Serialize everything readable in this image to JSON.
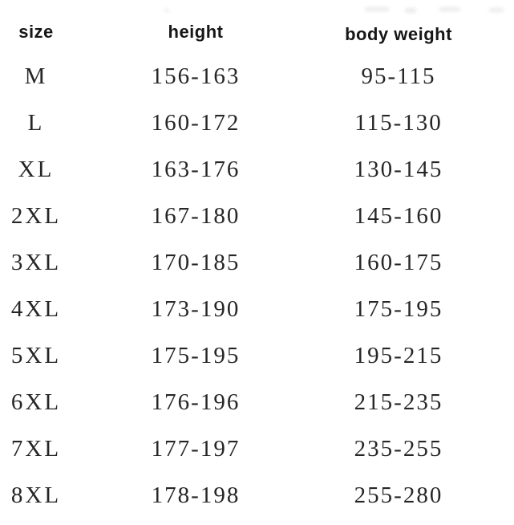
{
  "chart_data": {
    "type": "table",
    "columns": [
      "size",
      "height",
      "body weight"
    ],
    "rows": [
      [
        "M",
        "156-163",
        "95-115"
      ],
      [
        "L",
        "160-172",
        "115-130"
      ],
      [
        "XL",
        "163-176",
        "130-145"
      ],
      [
        "2XL",
        "167-180",
        "145-160"
      ],
      [
        "3XL",
        "170-185",
        "160-175"
      ],
      [
        "4XL",
        "173-190",
        "175-195"
      ],
      [
        "5XL",
        "175-195",
        "195-215"
      ],
      [
        "6XL",
        "176-196",
        "215-235"
      ],
      [
        "7XL",
        "177-197",
        "235-255"
      ],
      [
        "8XL",
        "178-198",
        "255-280"
      ]
    ],
    "layout": {
      "grid": "off",
      "borders": "none",
      "header_style": "bold sans-serif",
      "body_style": "serif"
    }
  },
  "colors": {
    "background": "#ffffff",
    "header_text": "#171717",
    "data_text": "#262626"
  }
}
